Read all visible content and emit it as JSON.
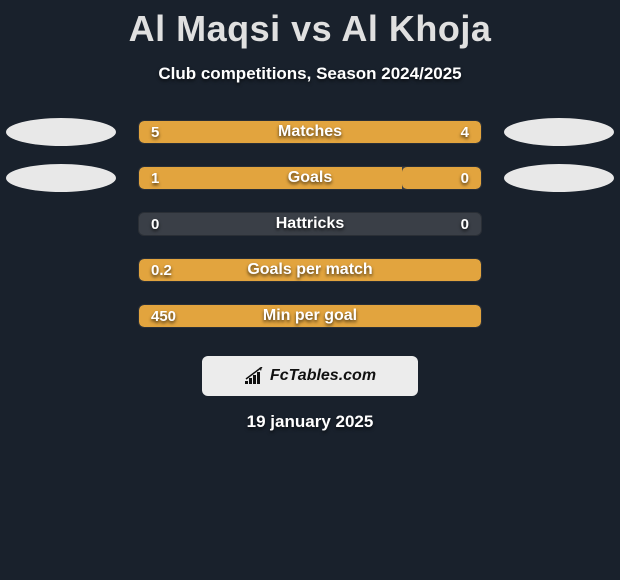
{
  "header": {
    "title": "Al Maqsi vs Al Khoja",
    "subtitle": "Club competitions, Season 2024/2025"
  },
  "rows": [
    {
      "label": "Matches",
      "left_value": "5",
      "right_value": "4",
      "show_left_ellipse": true,
      "show_right_ellipse": true,
      "left_fill_pct": 55.5,
      "right_fill_pct": 44.5,
      "right_rounded_left": false
    },
    {
      "label": "Goals",
      "left_value": "1",
      "right_value": "0",
      "show_left_ellipse": true,
      "show_right_ellipse": true,
      "left_fill_pct": 77,
      "right_fill_pct": 23,
      "right_rounded_left": true
    },
    {
      "label": "Hattricks",
      "left_value": "0",
      "right_value": "0",
      "show_left_ellipse": false,
      "show_right_ellipse": false,
      "left_fill_pct": 0,
      "right_fill_pct": 0,
      "right_rounded_left": false
    },
    {
      "label": "Goals per match",
      "left_value": "0.2",
      "right_value": "",
      "show_left_ellipse": false,
      "show_right_ellipse": false,
      "left_fill_pct": 100,
      "right_fill_pct": 0,
      "right_rounded_left": false
    },
    {
      "label": "Min per goal",
      "left_value": "450",
      "right_value": "",
      "show_left_ellipse": false,
      "show_right_ellipse": false,
      "left_fill_pct": 100,
      "right_fill_pct": 0,
      "right_rounded_left": false
    }
  ],
  "brand": {
    "text": "FcTables.com"
  },
  "footer": {
    "date": "19 january 2025"
  },
  "colors": {
    "background": "#19212c",
    "bar_fill": "#e2a43e",
    "bar_track": "#3a3f47",
    "title_color": "#e0e0e0",
    "ellipse_color": "#e8e8e8",
    "brand_bg": "#ececec"
  }
}
